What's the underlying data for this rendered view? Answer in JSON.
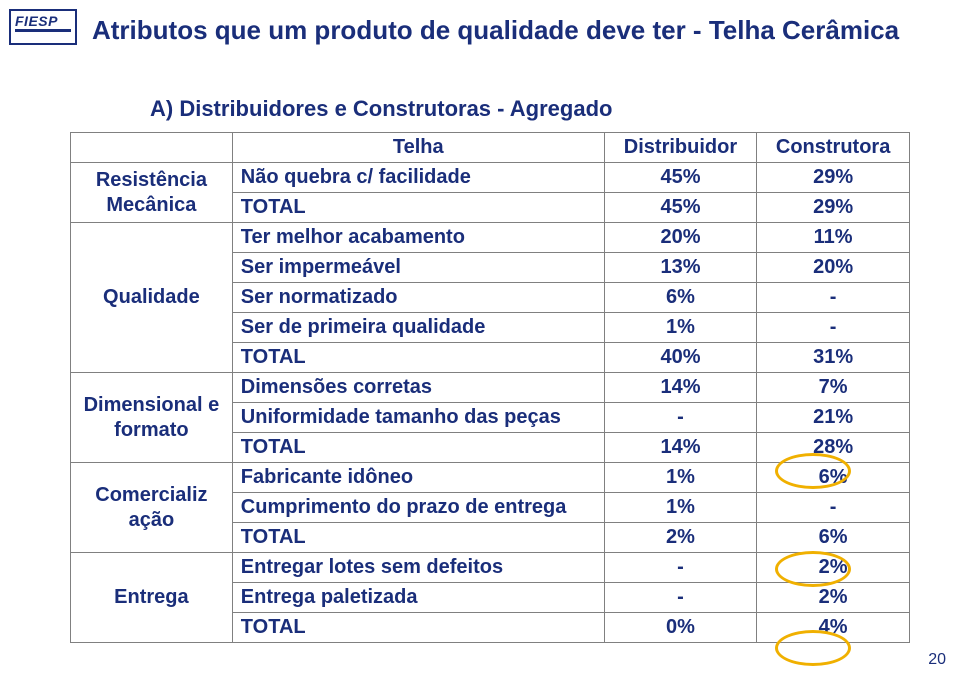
{
  "logo": {
    "text": "FIESP"
  },
  "title": "Atributos que um produto de qualidade deve ter - Telha Cerâmica",
  "subtitle": "A) Distribuidores e Construtoras - Agregado",
  "pagenum": "20",
  "table": {
    "header": {
      "c0": "",
      "c1": "Telha",
      "c2": "Distribuidor",
      "c3": "Construtora"
    },
    "groups": [
      {
        "name": "Resistência Mecânica",
        "rows": [
          {
            "attr": "Não quebra c/ facilidade",
            "v1": "45%",
            "v2": "29%"
          },
          {
            "attr": "TOTAL",
            "v1": "45%",
            "v2": "29%"
          }
        ]
      },
      {
        "name": "Qualidade",
        "rows": [
          {
            "attr": "Ter melhor acabamento",
            "v1": "20%",
            "v2": "11%"
          },
          {
            "attr": "Ser impermeável",
            "v1": "13%",
            "v2": "20%"
          },
          {
            "attr": "Ser normatizado",
            "v1": "6%",
            "v2": "-"
          },
          {
            "attr": "Ser de primeira qualidade",
            "v1": "1%",
            "v2": "-"
          },
          {
            "attr": "TOTAL",
            "v1": "40%",
            "v2": "31%"
          }
        ]
      },
      {
        "name": "Dimensional e formato",
        "rows": [
          {
            "attr": "Dimensões corretas",
            "v1": "14%",
            "v2": "7%"
          },
          {
            "attr": "Uniformidade tamanho das peças",
            "v1": "-",
            "v2": "21%"
          },
          {
            "attr": "TOTAL",
            "v1": "14%",
            "v2": "28%"
          }
        ]
      },
      {
        "name": "Comercializ ação",
        "rows": [
          {
            "attr": "Fabricante idôneo",
            "v1": "1%",
            "v2": "6%"
          },
          {
            "attr": "Cumprimento do prazo de entrega",
            "v1": "1%",
            "v2": "-"
          },
          {
            "attr": "TOTAL",
            "v1": "2%",
            "v2": "6%"
          }
        ]
      },
      {
        "name": "Entrega",
        "rows": [
          {
            "attr": "Entregar lotes sem defeitos",
            "v1": "-",
            "v2": "2%"
          },
          {
            "attr": "Entrega paletizada",
            "v1": "-",
            "v2": "2%"
          },
          {
            "attr": "TOTAL",
            "v1": "0%",
            "v2": "4%"
          }
        ]
      }
    ]
  }
}
